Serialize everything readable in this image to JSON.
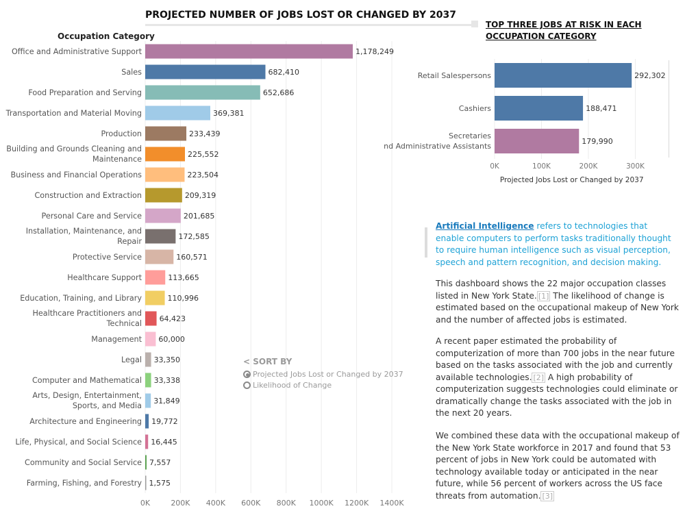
{
  "page": {
    "title": "PROJECTED NUMBER OF JOBS LOST OR CHANGED BY 2037",
    "right_title_line1": "TOP THREE JOBS AT RISK IN EACH",
    "right_title_line2": "OCCUPATION CATEGORY",
    "sort": {
      "title": "< SORT BY",
      "options": [
        "Projected Jobs Lost or Changed by 2037",
        "Likelihood of Change"
      ],
      "selected": 0
    },
    "text": {
      "ai_link": "Artificial Intelligence",
      "ai_rest": " refers to technologies that enable computers to perform tasks traditionally thought to require human intelligence such as visual perception, speech and pattern recognition, and decision making.",
      "p1_a": "This dashboard shows the 22 major occupation classes listed in New York State.",
      "p1_fn": "[1]",
      "p1_b": "  The likelihood of change is estimated based on the occupational makeup of New York and the number of affected jobs is estimated.",
      "p2_a": "A recent paper estimated the probability of computerization of more than 700 jobs in the near future based on the tasks associated with the job and currently available technologies.",
      "p2_fn": "[2]",
      "p2_b": " A high probability of computerization suggests technologies could eliminate or dramatically change the tasks associated with the job in the next 20 years.",
      "p3_a": "We combined these data with the occupational makeup of the New York State workforce in 2017 and found that 53 percent of jobs in New York could be automated with technology available today or anticipated in the near future, while 56 percent of workers across the US face threats from automation.",
      "p3_fn": "[3]"
    }
  },
  "chart_data": [
    {
      "type": "bar",
      "orientation": "horizontal",
      "title": "PROJECTED NUMBER OF JOBS LOST OR CHANGED BY 2037",
      "ylabel": "Occupation Category",
      "xlim": [
        0,
        1400000
      ],
      "xticks": [
        0,
        200000,
        400000,
        600000,
        800000,
        1000000,
        1200000,
        1400000
      ],
      "xtick_labels": [
        "0K",
        "200K",
        "400K",
        "600K",
        "800K",
        "1000K",
        "1200K",
        "1400K"
      ],
      "grid": true,
      "categories": [
        "Office and Administrative Support",
        "Sales",
        "Food Preparation and Serving",
        "Transportation and Material Moving",
        "Production",
        "Building and Grounds Cleaning and Maintenance",
        "Business and Financial Operations",
        "Construction and Extraction",
        "Personal Care and Service",
        "Installation, Maintenance, and Repair",
        "Protective Service",
        "Healthcare Support",
        "Education, Training, and Library",
        "Healthcare Practitioners and Technical",
        "Management",
        "Legal",
        "Computer and Mathematical",
        "Arts, Design, Entertainment, Sports, and Media",
        "Architecture and Engineering",
        "Life, Physical, and Social Science",
        "Community and Social Service",
        "Farming, Fishing, and Forestry"
      ],
      "values": [
        1178249,
        682410,
        652686,
        369381,
        233439,
        225552,
        223504,
        209319,
        201685,
        172585,
        160571,
        113665,
        110996,
        64423,
        60000,
        33350,
        33338,
        31849,
        19772,
        16445,
        7557,
        1575
      ],
      "value_labels": [
        "1,178,249",
        "682,410",
        "652,686",
        "369,381",
        "233,439",
        "225,552",
        "223,504",
        "209,319",
        "201,685",
        "172,585",
        "160,571",
        "113,665",
        "110,996",
        "64,423",
        "60,000",
        "33,350",
        "33,338",
        "31,849",
        "19,772",
        "16,445",
        "7,557",
        "1,575"
      ],
      "colors": [
        "#b07aa1",
        "#4e79a7",
        "#86bcb6",
        "#a0cbe8",
        "#9c7a62",
        "#f28e2b",
        "#ffbe7d",
        "#b6992d",
        "#d4a6c8",
        "#79706e",
        "#d7b5a6",
        "#ff9d9a",
        "#f1ce63",
        "#e15759",
        "#fabfd2",
        "#bab0ac",
        "#8cd17d",
        "#a0cbe8",
        "#4e79a7",
        "#d37295",
        "#59a14f",
        "#9d9d9d"
      ]
    },
    {
      "type": "bar",
      "orientation": "horizontal",
      "title": "TOP THREE JOBS AT RISK IN EACH OCCUPATION CATEGORY",
      "xlabel": "Projected Jobs Lost or Changed by 2037",
      "xlim": [
        0,
        330000
      ],
      "xticks": [
        0,
        100000,
        200000,
        300000
      ],
      "xtick_labels": [
        "0K",
        "100K",
        "200K",
        "300K"
      ],
      "grid": true,
      "categories": [
        "Retail Salespersons",
        "Cashiers",
        "Secretaries and Administrative Assistants"
      ],
      "values": [
        292302,
        188471,
        179990
      ],
      "value_labels": [
        "292,302",
        "188,471",
        "179,990"
      ],
      "colors": [
        "#4e79a7",
        "#4e79a7",
        "#b07aa1"
      ]
    }
  ]
}
